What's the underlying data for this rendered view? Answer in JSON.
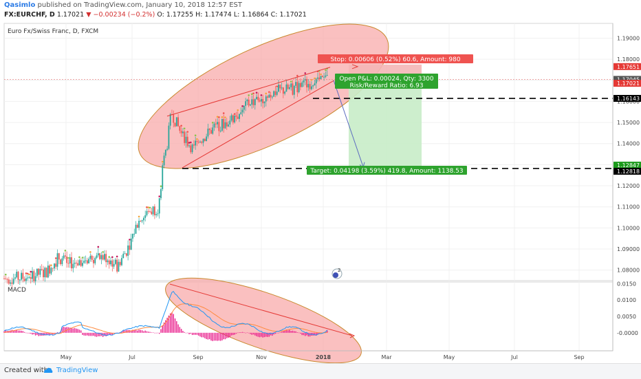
{
  "header": {
    "author": "Qasimlo",
    "published_text": "published on TradingView.com, January 10, 2018 12:57 EST",
    "symbol": "FX:EURCHF, D",
    "last": "1.17021",
    "change": "▼ −0.00234 (−0.2%)",
    "ohlc": "O: 1.17255  H: 1.17474  L: 1.16864  C: 1.17021"
  },
  "footer": {
    "created_label": "Created with",
    "brand": "TradingView"
  },
  "chart_data": [
    {
      "type": "candlestick",
      "title": "Euro Fx/Swiss Franc, D, FXCM",
      "ylim": [
        1.075,
        1.197
      ],
      "y_ticks": [
        1.08,
        1.09,
        1.1,
        1.11,
        1.12,
        1.13,
        1.14,
        1.15,
        1.16,
        1.17,
        1.18,
        1.19
      ],
      "x_tick_labels": [
        "May",
        "Jul",
        "Sep",
        "Nov",
        "2018",
        "Mar",
        "May",
        "Jul",
        "Sep"
      ],
      "price_labels": [
        {
          "value": 1.17651,
          "text": "1.17651",
          "color": "#e53935"
        },
        {
          "value": 1.17045,
          "text": "1.17045",
          "color": "#555555"
        },
        {
          "value": 1.17021,
          "text": "1.17021",
          "color": "#e53935"
        },
        {
          "value": 1.16143,
          "text": "1.16143",
          "color": "#000000"
        },
        {
          "value": 1.12847,
          "text": "1.12847",
          "color": "#1b9a1b"
        },
        {
          "value": 1.12818,
          "text": "1.12818",
          "color": "#000000"
        }
      ],
      "position": {
        "stop_text": "Stop: 0.00606 (0.52%) 60.6, Amount: 980",
        "pnl_text": "Open P&L: 0.00024, Qty: 3300",
        "rr_text": "Risk/Reward Ratio: 6.93",
        "target_text": "Target: 0.04198 (3.59%) 419.8, Amount: 1138.53"
      },
      "icon": "event-flag-icon",
      "event_badge": "2",
      "colors": {
        "up": "#26a69a",
        "down": "#ef5350",
        "ellipse": "#f8a5a5",
        "target_zone": "#c8ecc8",
        "stop_zone": "#f4b6b6"
      }
    },
    {
      "type": "line",
      "title": "MACD",
      "ylim": [
        -0.0055,
        0.0155
      ],
      "y_ticks": [
        -0.0,
        0.005,
        0.01,
        0.015
      ],
      "y_tick_labels": [
        "-0.0000",
        "0.0050",
        "0.0100",
        "0.0150"
      ],
      "series": [
        {
          "color": "#2196f3"
        },
        {
          "color": "#ff8a3d"
        }
      ],
      "histogram_color": "#e91e8c"
    }
  ]
}
